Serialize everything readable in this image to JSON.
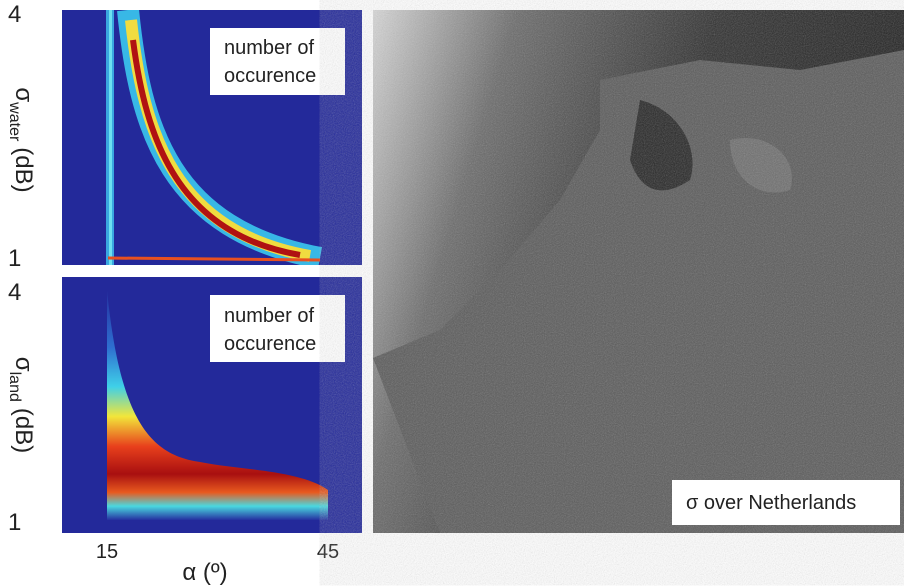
{
  "left_panels": [
    {
      "ylabel_symbol": "σ",
      "ylabel_subscript": "water",
      "ylabel_unit": "(dB)",
      "ytick_top": 4,
      "ytick_bottom": 1,
      "annotation_line1": "number of",
      "annotation_line2": "occurence"
    },
    {
      "ylabel_symbol": "σ",
      "ylabel_subscript": "land",
      "ylabel_unit": "(dB)",
      "ytick_top": 4,
      "ytick_bottom": 1,
      "annotation_line1": "number of",
      "annotation_line2": "occurence"
    }
  ],
  "x_axis": {
    "tick_left": 15,
    "tick_right": 45,
    "label": "α (º)"
  },
  "map": {
    "annotation": "σ  over Netherlands"
  }
}
